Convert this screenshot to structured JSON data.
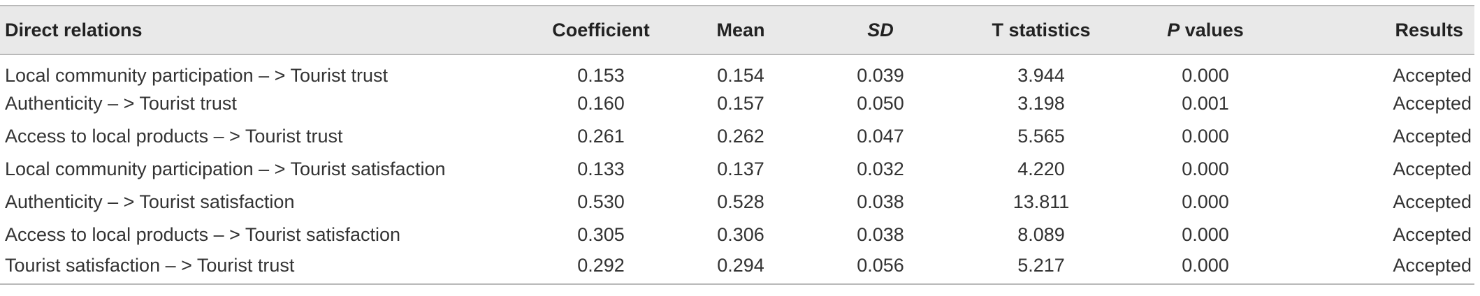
{
  "table": {
    "headers": {
      "relation": "Direct relations",
      "coefficient": "Coefficient",
      "mean": "Mean",
      "sd": "SD",
      "t_statistics": "T statistics",
      "p_prefix": "P",
      "p_suffix": " values",
      "results": "Results"
    },
    "rows": [
      {
        "relation": "Local community participation – > Tourist trust",
        "coefficient": "0.153",
        "mean": "0.154",
        "sd": "0.039",
        "t": "3.944",
        "p": "0.000",
        "result": "Accepted"
      },
      {
        "relation": "Authenticity – > Tourist trust",
        "coefficient": "0.160",
        "mean": "0.157",
        "sd": "0.050",
        "t": "3.198",
        "p": "0.001",
        "result": "Accepted"
      },
      {
        "relation": "Access to local products – > Tourist trust",
        "coefficient": "0.261",
        "mean": "0.262",
        "sd": "0.047",
        "t": "5.565",
        "p": "0.000",
        "result": "Accepted"
      },
      {
        "relation": "Local community participation – > Tourist satisfaction",
        "coefficient": "0.133",
        "mean": "0.137",
        "sd": "0.032",
        "t": "4.220",
        "p": "0.000",
        "result": "Accepted"
      },
      {
        "relation": "Authenticity – > Tourist satisfaction",
        "coefficient": "0.530",
        "mean": "0.528",
        "sd": "0.038",
        "t": "13.811",
        "p": "0.000",
        "result": "Accepted"
      },
      {
        "relation": "Access to local products – > Tourist satisfaction",
        "coefficient": "0.305",
        "mean": "0.306",
        "sd": "0.038",
        "t": "8.089",
        "p": "0.000",
        "result": "Accepted"
      },
      {
        "relation": "Tourist satisfaction – > Tourist trust",
        "coefficient": "0.292",
        "mean": "0.294",
        "sd": "0.056",
        "t": "5.217",
        "p": "0.000",
        "result": "Accepted"
      }
    ]
  }
}
